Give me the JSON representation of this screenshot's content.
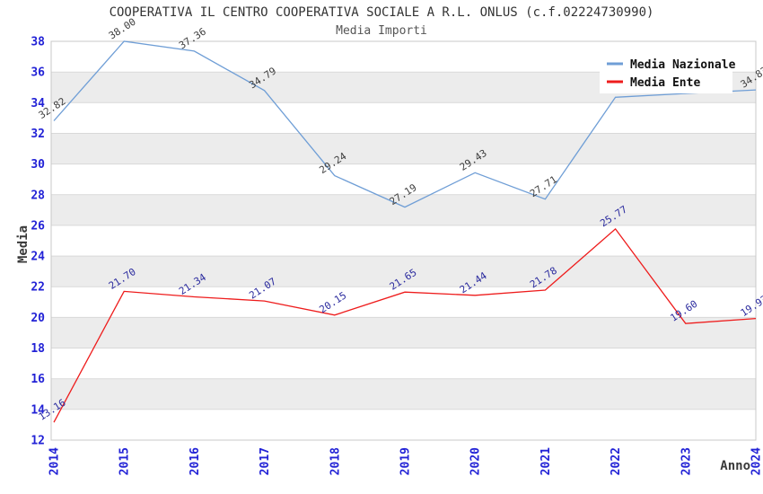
{
  "style": {
    "band_fill": "#ececec",
    "grid_color": "#d9d9d9",
    "border_color": "#c8c8c8",
    "tick_color": "#2222d6",
    "legend_bg": "#ffffff"
  },
  "chart_data": {
    "type": "line",
    "title": "COOPERATIVA IL CENTRO COOPERATIVA SOCIALE A R.L. ONLUS (c.f.02224730990)",
    "subtitle": "Media Importi",
    "xlabel": "Anno",
    "ylabel": "Media",
    "x": [
      2014,
      2015,
      2016,
      2017,
      2018,
      2019,
      2020,
      2021,
      2022,
      2023,
      2024
    ],
    "ylim": [
      12,
      38
    ],
    "ytick_step": 2,
    "yticks": [
      12,
      14,
      16,
      18,
      20,
      22,
      24,
      26,
      28,
      30,
      32,
      34,
      36,
      38
    ],
    "grid": "horizontal-bands",
    "legend_position": "top-right",
    "series": [
      {
        "name": "Media Nazionale",
        "color": "#6f9ed6",
        "label_color": "#3d3d3d",
        "values": [
          32.82,
          38.0,
          37.36,
          34.79,
          29.24,
          27.19,
          29.43,
          27.71,
          34.35,
          34.6,
          34.83
        ],
        "labels": [
          "32.82",
          "38.00",
          "37.36",
          "34.79",
          "29.24",
          "27.19",
          "29.43",
          "27.71",
          "",
          "",
          "34.83"
        ]
      },
      {
        "name": "Media Ente",
        "color": "#ee1c1c",
        "label_color": "#2a2a9e",
        "values": [
          13.16,
          21.7,
          21.34,
          21.07,
          20.15,
          21.65,
          21.44,
          21.78,
          25.77,
          19.6,
          19.93
        ],
        "labels": [
          "13.16",
          "21.70",
          "21.34",
          "21.07",
          "20.15",
          "21.65",
          "21.44",
          "21.78",
          "25.77",
          "19.60",
          "19.93"
        ]
      }
    ]
  }
}
